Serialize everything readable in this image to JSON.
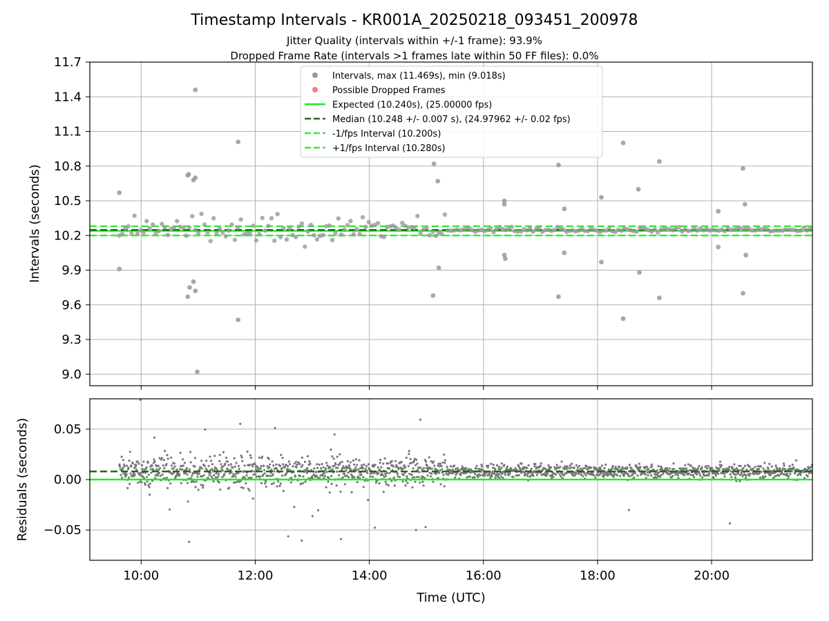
{
  "figure": {
    "title": "Timestamp Intervals - KR001A_20250218_093451_200978",
    "subtitle_1": "Jitter Quality (intervals within +/-1 frame): 93.9%",
    "subtitle_2": "Dropped Frame Rate (intervals >1 frames late within 50 FF files): 0.0%"
  },
  "colors": {
    "intervals": "#999999",
    "residuals": "#777777",
    "dropped": "#ff5555",
    "expected": "#1aee1a",
    "median": "#1a6b1a",
    "fps_bounds": "#33ee33",
    "grid": "#b0b0b0"
  },
  "chart_data": [
    {
      "type": "scatter",
      "xlabel": "",
      "ylabel": "Intervals (seconds)",
      "xlim": [
        "09:06",
        "21:46"
      ],
      "ylim": [
        8.9,
        11.7
      ],
      "yticks": [
        "9.0",
        "9.3",
        "9.6",
        "9.9",
        "10.2",
        "10.5",
        "10.8",
        "11.1",
        "11.4",
        "11.7"
      ],
      "grid": true,
      "legend_position": "top-center",
      "legend": [
        "Intervals, max (11.469s), min (9.018s)",
        "Possible Dropped Frames",
        "Expected (10.240s), (25.00000 fps)",
        "Median (10.248 +/- 0.007 s), (24.97962 +/- 0.02 fps)",
        "-1/fps Interval (10.200s)",
        "+1/fps Interval (10.280s)"
      ],
      "reference_lines": {
        "expected": 10.24,
        "median": 10.248,
        "minus_1_fps": 10.2,
        "plus_1_fps": 10.28
      },
      "outliers": [
        {
          "t": "09:37",
          "y": 10.57
        },
        {
          "t": "09:37",
          "y": 9.91
        },
        {
          "t": "10:49",
          "y": 10.72
        },
        {
          "t": "10:50",
          "y": 10.73
        },
        {
          "t": "10:55",
          "y": 10.68
        },
        {
          "t": "10:57",
          "y": 10.7
        },
        {
          "t": "10:57",
          "y": 11.46
        },
        {
          "t": "10:49",
          "y": 9.67
        },
        {
          "t": "10:51",
          "y": 9.75
        },
        {
          "t": "10:55",
          "y": 9.8
        },
        {
          "t": "10:57",
          "y": 9.72
        },
        {
          "t": "10:59",
          "y": 9.02
        },
        {
          "t": "11:42",
          "y": 11.01
        },
        {
          "t": "11:42",
          "y": 9.47
        },
        {
          "t": "15:08",
          "y": 10.82
        },
        {
          "t": "15:12",
          "y": 10.67
        },
        {
          "t": "15:07",
          "y": 9.68
        },
        {
          "t": "15:13",
          "y": 9.92
        },
        {
          "t": "16:22",
          "y": 10.5
        },
        {
          "t": "16:22",
          "y": 10.47
        },
        {
          "t": "16:22",
          "y": 10.03
        },
        {
          "t": "16:23",
          "y": 10.0
        },
        {
          "t": "17:19",
          "y": 10.81
        },
        {
          "t": "17:25",
          "y": 10.43
        },
        {
          "t": "17:25",
          "y": 10.05
        },
        {
          "t": "17:19",
          "y": 9.67
        },
        {
          "t": "18:04",
          "y": 10.53
        },
        {
          "t": "18:04",
          "y": 9.97
        },
        {
          "t": "18:27",
          "y": 11.0
        },
        {
          "t": "18:27",
          "y": 9.48
        },
        {
          "t": "18:43",
          "y": 10.6
        },
        {
          "t": "18:44",
          "y": 9.88
        },
        {
          "t": "19:05",
          "y": 10.84
        },
        {
          "t": "19:05",
          "y": 9.66
        },
        {
          "t": "20:07",
          "y": 10.41
        },
        {
          "t": "20:07",
          "y": 10.1
        },
        {
          "t": "20:33",
          "y": 10.78
        },
        {
          "t": "20:35",
          "y": 10.47
        },
        {
          "t": "20:36",
          "y": 10.03
        },
        {
          "t": "20:33",
          "y": 9.7
        }
      ]
    },
    {
      "type": "scatter",
      "xlabel": "Time (UTC)",
      "ylabel": "Residuals (seconds)",
      "xlim": [
        "09:06",
        "21:46"
      ],
      "ylim": [
        -0.08,
        0.08
      ],
      "yticks": [
        "−0.05",
        "0.00",
        "0.05"
      ],
      "xticks": [
        "10:00",
        "12:00",
        "14:00",
        "16:00",
        "18:00",
        "20:00"
      ],
      "grid": true,
      "reference_lines": {
        "zero": 0.0,
        "median_offset": 0.008
      }
    }
  ]
}
